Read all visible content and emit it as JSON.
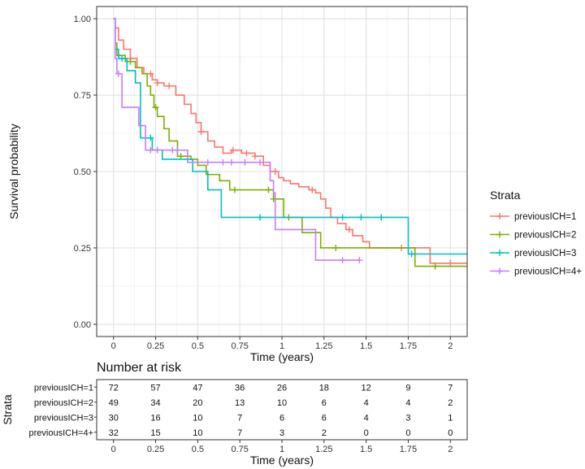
{
  "chart_data": {
    "type": "line",
    "subtype": "kaplan-meier-step",
    "title": "",
    "xlabel": "Time (years)",
    "ylabel": "Survival probability",
    "xlim": [
      -0.1,
      2.1
    ],
    "ylim": [
      -0.04,
      1.04
    ],
    "x_ticks": [
      0,
      0.25,
      0.5,
      0.75,
      1,
      1.25,
      1.5,
      1.75,
      2
    ],
    "x_tick_labels": [
      "0",
      "0.25",
      "0.5",
      "0.75",
      "1",
      "1.25",
      "1.5",
      "1.75",
      "2"
    ],
    "y_ticks": [
      0,
      0.25,
      0.5,
      0.75,
      1
    ],
    "y_tick_labels": [
      "0.00",
      "0.25",
      "0.50",
      "0.75",
      "1.00"
    ],
    "grid": true,
    "legend": {
      "title": "Strata",
      "position": "right"
    },
    "series": [
      {
        "name": "previousICH=1",
        "color": "#F8766D",
        "steps": [
          [
            0,
            1.0
          ],
          [
            0.01,
            0.97
          ],
          [
            0.03,
            0.93
          ],
          [
            0.06,
            0.9
          ],
          [
            0.1,
            0.87
          ],
          [
            0.14,
            0.84
          ],
          [
            0.18,
            0.82
          ],
          [
            0.23,
            0.8
          ],
          [
            0.26,
            0.79
          ],
          [
            0.3,
            0.78
          ],
          [
            0.33,
            0.78
          ],
          [
            0.37,
            0.75
          ],
          [
            0.42,
            0.72
          ],
          [
            0.46,
            0.69
          ],
          [
            0.49,
            0.66
          ],
          [
            0.52,
            0.63
          ],
          [
            0.56,
            0.6
          ],
          [
            0.6,
            0.58
          ],
          [
            0.65,
            0.56
          ],
          [
            0.7,
            0.57
          ],
          [
            0.76,
            0.56
          ],
          [
            0.84,
            0.55
          ],
          [
            0.89,
            0.52
          ],
          [
            0.93,
            0.5
          ],
          [
            0.98,
            0.48
          ],
          [
            1.01,
            0.47
          ],
          [
            1.05,
            0.46
          ],
          [
            1.1,
            0.45
          ],
          [
            1.16,
            0.44
          ],
          [
            1.2,
            0.43
          ],
          [
            1.23,
            0.41
          ],
          [
            1.26,
            0.38
          ],
          [
            1.29,
            0.35
          ],
          [
            1.33,
            0.33
          ],
          [
            1.38,
            0.31
          ],
          [
            1.42,
            0.29
          ],
          [
            1.48,
            0.27
          ],
          [
            1.52,
            0.25
          ],
          [
            1.88,
            0.2
          ],
          [
            2.1,
            0.2
          ]
        ],
        "censor_times": [
          0.1,
          0.22,
          0.26,
          0.33,
          0.52,
          0.71,
          0.79,
          0.84,
          0.96,
          1.18,
          1.4,
          1.71,
          2.0
        ]
      },
      {
        "name": "previousICH=2",
        "color": "#7CAE00",
        "steps": [
          [
            0,
            1.0
          ],
          [
            0.01,
            0.92
          ],
          [
            0.02,
            0.88
          ],
          [
            0.07,
            0.86
          ],
          [
            0.13,
            0.84
          ],
          [
            0.17,
            0.82
          ],
          [
            0.2,
            0.78
          ],
          [
            0.22,
            0.75
          ],
          [
            0.24,
            0.71
          ],
          [
            0.26,
            0.68
          ],
          [
            0.3,
            0.64
          ],
          [
            0.33,
            0.6
          ],
          [
            0.38,
            0.55
          ],
          [
            0.46,
            0.54
          ],
          [
            0.5,
            0.52
          ],
          [
            0.55,
            0.49
          ],
          [
            0.63,
            0.47
          ],
          [
            0.69,
            0.44
          ],
          [
            0.95,
            0.41
          ],
          [
            1.01,
            0.35
          ],
          [
            1.12,
            0.3
          ],
          [
            1.23,
            0.25
          ],
          [
            1.79,
            0.19
          ],
          [
            2.1,
            0.19
          ]
        ],
        "censor_times": [
          0.1,
          0.25,
          0.4,
          0.72,
          0.92,
          0.95,
          1.04,
          1.32,
          1.91
        ]
      },
      {
        "name": "previousICH=3",
        "color": "#00BFC4",
        "steps": [
          [
            0,
            1.0
          ],
          [
            0.01,
            0.9
          ],
          [
            0.03,
            0.87
          ],
          [
            0.08,
            0.83
          ],
          [
            0.13,
            0.79
          ],
          [
            0.16,
            0.61
          ],
          [
            0.23,
            0.57
          ],
          [
            0.29,
            0.54
          ],
          [
            0.47,
            0.5
          ],
          [
            0.56,
            0.44
          ],
          [
            0.64,
            0.35
          ],
          [
            1.75,
            0.23
          ],
          [
            2.1,
            0.23
          ]
        ],
        "censor_times": [
          0.05,
          0.22,
          0.44,
          0.87,
          1.36,
          1.47,
          1.59,
          1.77
        ]
      },
      {
        "name": "previousICH=4+",
        "color": "#C77CFF",
        "steps": [
          [
            0,
            1.0
          ],
          [
            0.01,
            0.87
          ],
          [
            0.02,
            0.82
          ],
          [
            0.05,
            0.71
          ],
          [
            0.15,
            0.65
          ],
          [
            0.19,
            0.57
          ],
          [
            0.44,
            0.53
          ],
          [
            0.55,
            0.53
          ],
          [
            0.93,
            0.47
          ],
          [
            0.95,
            0.43
          ],
          [
            0.96,
            0.31
          ],
          [
            1.2,
            0.21
          ],
          [
            1.46,
            0.21
          ]
        ],
        "censor_times": [
          0.03,
          0.22,
          0.26,
          0.35,
          0.38,
          0.56,
          0.65,
          0.7,
          0.78,
          0.87,
          1.36,
          1.46
        ]
      }
    ],
    "risk_table": {
      "title": "Number at risk",
      "ylabel": "Strata",
      "xlabel": "Time (years)",
      "times": [
        0,
        0.25,
        0.5,
        0.75,
        1,
        1.25,
        1.5,
        1.75,
        2
      ],
      "rows": [
        {
          "name": "previousICH=1",
          "values": [
            72,
            57,
            47,
            36,
            26,
            18,
            12,
            9,
            7
          ]
        },
        {
          "name": "previousICH=2",
          "values": [
            49,
            34,
            20,
            13,
            10,
            6,
            4,
            4,
            2
          ]
        },
        {
          "name": "previousICH=3",
          "values": [
            30,
            16,
            10,
            7,
            6,
            6,
            4,
            3,
            1
          ]
        },
        {
          "name": "previousICH=4+",
          "values": [
            32,
            15,
            10,
            7,
            3,
            2,
            0,
            0,
            0
          ]
        }
      ]
    }
  }
}
